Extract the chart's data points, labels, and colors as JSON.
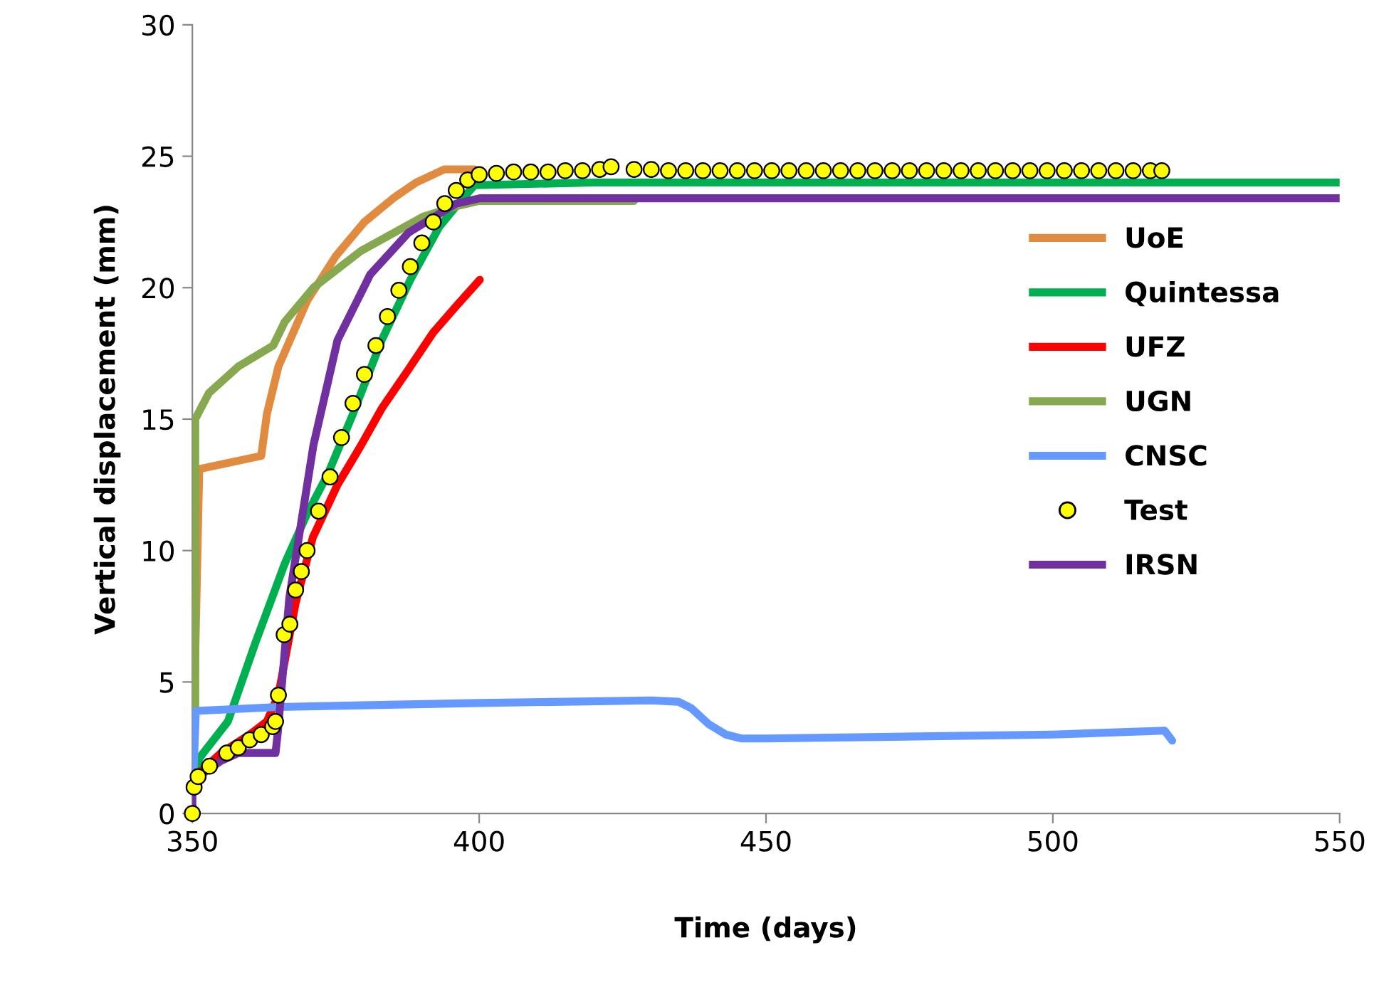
{
  "chart_data": {
    "type": "line",
    "xlabel": "Time (days)",
    "ylabel": "Vertical displacement (mm)",
    "xlim": [
      350,
      550
    ],
    "xticks": [
      350,
      400,
      450,
      500,
      550
    ],
    "ylim": [
      0,
      30
    ],
    "yticks": [
      0,
      5,
      10,
      15,
      20,
      25,
      30
    ],
    "grid": false,
    "legend": "right",
    "line_style": "solid",
    "series": [
      {
        "name": "UoE",
        "color": "#e08b3f",
        "x": [
          350.3,
          351.2,
          362,
          363,
          365,
          370,
          375,
          380,
          385,
          389,
          393.9,
          399.2
        ],
        "values": [
          4,
          13.1,
          13.6,
          15.2,
          17,
          19.5,
          21.2,
          22.5,
          23.4,
          24,
          24.5,
          24.5
        ]
      },
      {
        "name": "Quintessa",
        "color": "#00b050",
        "x": [
          350.5,
          351.2,
          356.2,
          361,
          366.1,
          370,
          373.6,
          378,
          383,
          388,
          393,
          396,
          399.2,
          420,
          470,
          550
        ],
        "values": [
          1.5,
          2.1,
          3.5,
          6.5,
          9.5,
          11.4,
          12.9,
          15.2,
          18,
          20.3,
          22.3,
          23.1,
          23.9,
          24.0,
          24.0,
          24.0
        ]
      },
      {
        "name": "UFZ",
        "color": "#ff0000",
        "x": [
          351,
          355,
          360,
          363,
          365,
          368,
          371,
          375.3,
          379.4,
          383,
          387.7,
          392,
          396,
          400.1
        ],
        "values": [
          1.5,
          2.3,
          3.0,
          3.5,
          4.5,
          8,
          10.5,
          12.5,
          14.0,
          15.4,
          16.9,
          18.3,
          19.3,
          20.3
        ]
      },
      {
        "name": "UGN",
        "color": "#86a84e",
        "x": [
          350.5,
          350.5,
          352.9,
          358,
          364.1,
          366.1,
          371.1,
          379.4,
          390.2,
          396,
          400,
          427
        ],
        "values": [
          4.0,
          15.0,
          16.0,
          17.0,
          17.8,
          18.7,
          20.0,
          21.4,
          22.7,
          23.1,
          23.3,
          23.3
        ]
      },
      {
        "name": "CNSC",
        "color": "#6699ff",
        "x": [
          350.2,
          350.6,
          365,
          400,
          430,
          434.7,
          437,
          440,
          443,
          445.8,
          450,
          500,
          519.5,
          520.8
        ],
        "values": [
          1.5,
          3.9,
          4.05,
          4.2,
          4.3,
          4.25,
          4.0,
          3.4,
          3.0,
          2.85,
          2.85,
          3.0,
          3.15,
          2.77
        ]
      },
      {
        "name": "Test",
        "type": "scatter",
        "color": "#ffff00",
        "marker": "circle",
        "x": [
          350,
          350.3,
          351,
          353,
          356,
          358,
          360,
          362,
          364,
          364.5,
          365,
          366,
          367,
          368,
          369,
          370,
          372,
          374,
          376,
          378,
          380,
          382,
          384,
          386,
          388,
          390,
          392,
          394,
          396,
          398,
          400,
          403,
          406,
          409,
          412,
          415,
          418,
          421,
          423,
          427,
          430,
          433,
          436,
          439,
          442,
          445,
          448,
          451,
          454,
          457,
          460,
          463,
          466,
          469,
          472,
          475,
          478,
          481,
          484,
          487,
          490,
          493,
          496,
          499,
          502,
          505,
          508,
          511,
          514,
          517,
          519
        ],
        "values": [
          0,
          1.0,
          1.4,
          1.8,
          2.3,
          2.5,
          2.8,
          3.0,
          3.3,
          3.5,
          4.5,
          6.8,
          7.2,
          8.5,
          9.2,
          10,
          11.5,
          12.8,
          14.3,
          15.6,
          16.7,
          17.8,
          18.9,
          19.9,
          20.8,
          21.7,
          22.5,
          23.2,
          23.7,
          24.1,
          24.3,
          24.35,
          24.4,
          24.4,
          24.4,
          24.45,
          24.45,
          24.5,
          24.6,
          24.5,
          24.5,
          24.45,
          24.45,
          24.45,
          24.45,
          24.45,
          24.45,
          24.45,
          24.45,
          24.45,
          24.45,
          24.45,
          24.45,
          24.45,
          24.45,
          24.45,
          24.45,
          24.45,
          24.45,
          24.45,
          24.45,
          24.45,
          24.45,
          24.45,
          24.45,
          24.45,
          24.45,
          24.45,
          24.45,
          24.45,
          24.45
        ]
      },
      {
        "name": "IRSN",
        "color": "#7030a0",
        "x": [
          350,
          350,
          351,
          355,
          358,
          364.5,
          364.9,
          366.9,
          371.1,
          375.3,
          381,
          387.7,
          396,
          400.1,
          550
        ],
        "values": [
          0,
          1.2,
          1.4,
          2.0,
          2.3,
          2.3,
          3.1,
          8.2,
          14.0,
          18.0,
          20.5,
          22.1,
          23.2,
          23.4,
          23.4
        ]
      }
    ]
  }
}
